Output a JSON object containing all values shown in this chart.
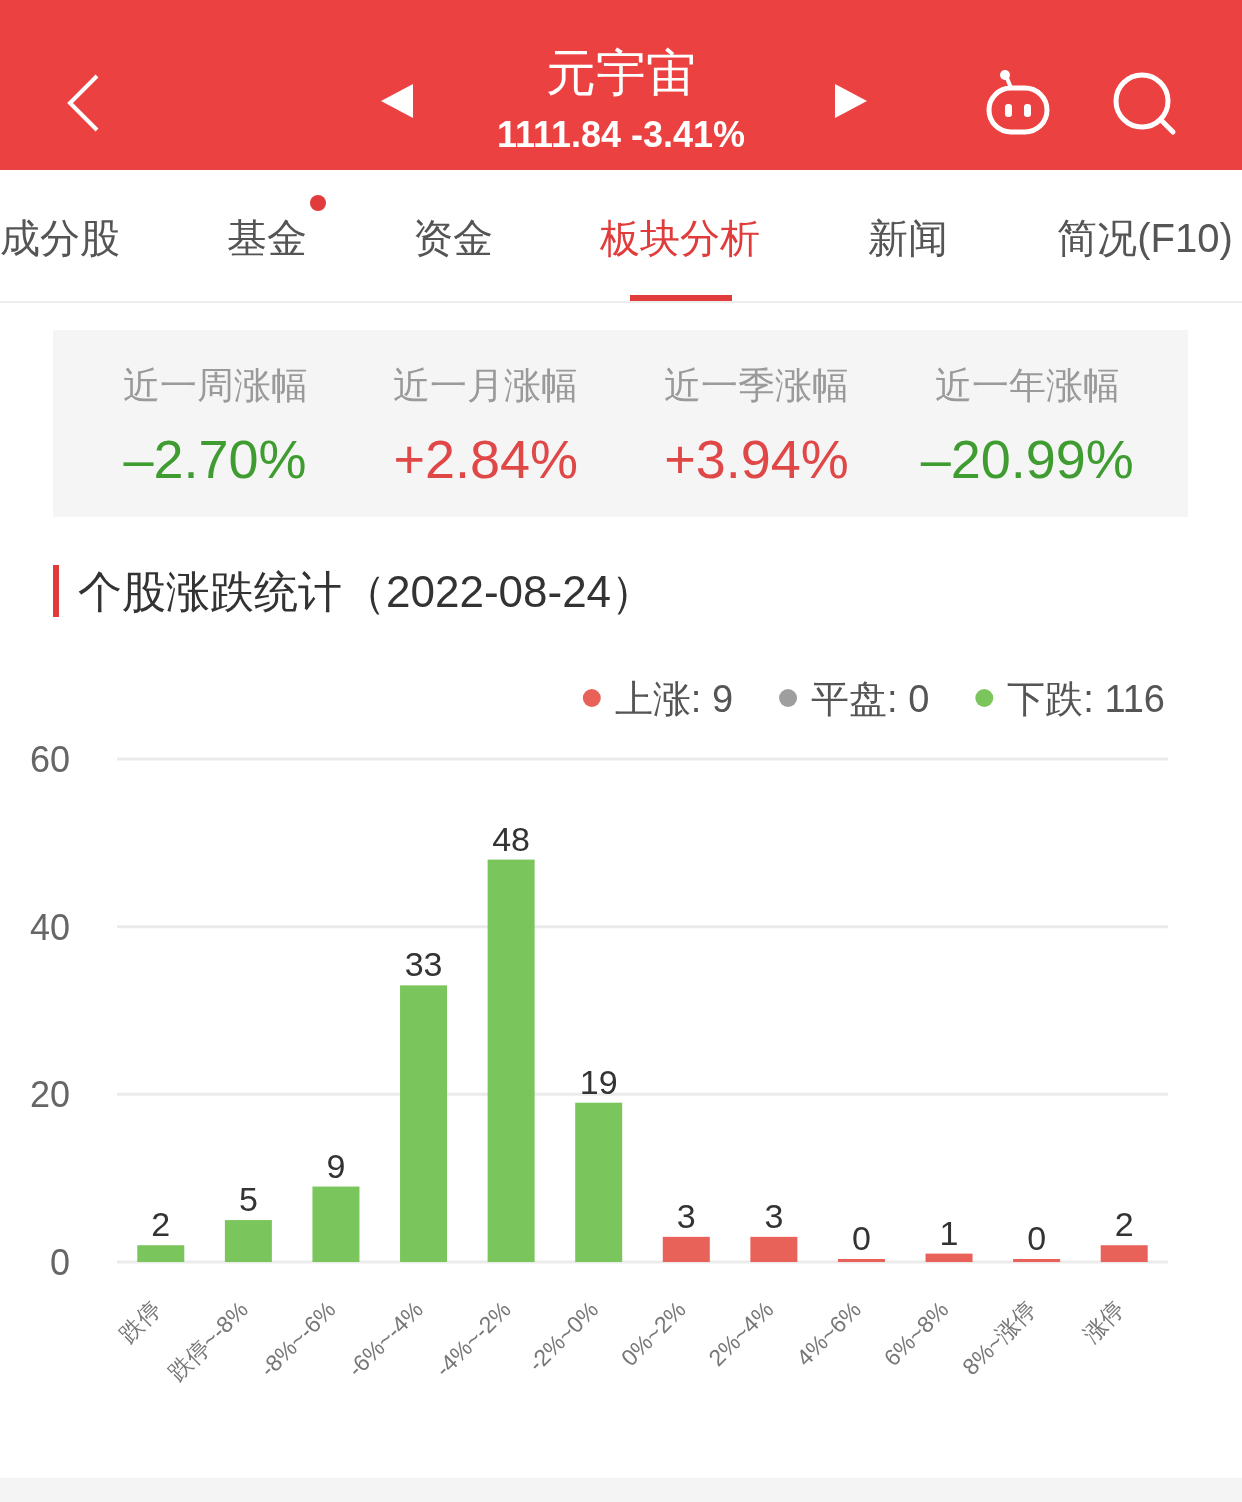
{
  "chart_data": [
    {
      "type": "other",
      "title": "元宇宙",
      "subtitle": "1111.84 -3.41%",
      "annotations": [
        "成分股",
        "基金",
        "资金",
        "板块分析",
        "新闻",
        "简况(F10)"
      ]
    },
    {
      "type": "other",
      "categories": [
        "近一周涨幅",
        "近一月涨幅",
        "近一季涨幅",
        "近一年涨幅"
      ],
      "values": [
        -2.7,
        2.84,
        3.94,
        -20.99
      ],
      "value_labels": [
        "–2.70%",
        "+2.84%",
        "+3.94%",
        "–20.99%"
      ]
    },
    {
      "type": "bar",
      "title": "个股涨跌统计（2022-08-24）",
      "categories": [
        "跌停",
        "跌停~-8%",
        "-8%~-6%",
        "-6%~-4%",
        "-4%~-2%",
        "-2%~0%",
        "0%~2%",
        "2%~4%",
        "4%~6%",
        "6%~8%",
        "8%~涨停",
        "涨停"
      ],
      "stacked": true,
      "series": [
        {
          "name": "上涨: 9",
          "color": "#e9625a",
          "values": [
            null,
            null,
            null,
            null,
            null,
            null,
            3,
            3,
            0,
            1,
            0,
            2
          ]
        },
        {
          "name": "平盘: 0",
          "color": "#9e9e9e",
          "values": [
            null,
            null,
            null,
            null,
            null,
            null,
            null,
            null,
            null,
            null,
            null,
            null
          ]
        },
        {
          "name": "下跌: 116",
          "color": "#7ac55c",
          "values": [
            2,
            5,
            9,
            33,
            48,
            19,
            null,
            null,
            null,
            null,
            null,
            null
          ]
        }
      ],
      "ylim": [
        0,
        60
      ],
      "yticks": [
        0,
        20,
        40,
        60
      ],
      "grid": "y",
      "legend": "top right",
      "data_labels": true
    }
  ]
}
